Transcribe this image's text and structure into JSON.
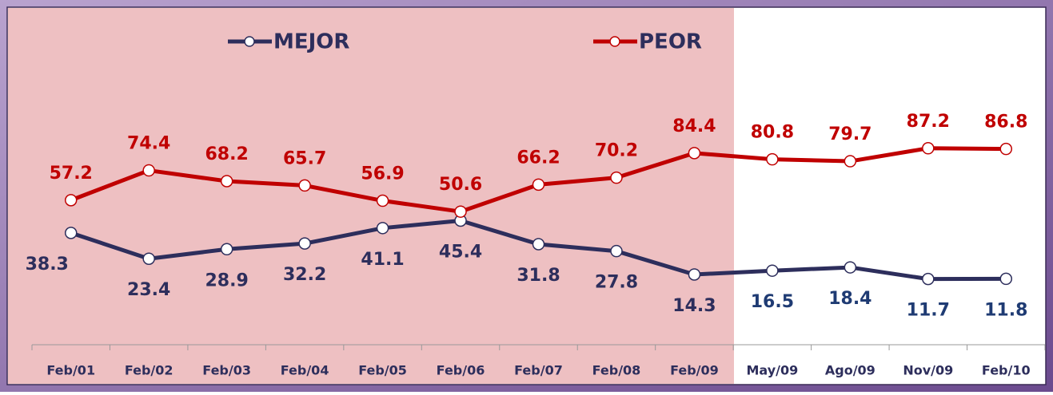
{
  "chart_data": {
    "type": "line",
    "categories": [
      "Feb/01",
      "Feb/02",
      "Feb/03",
      "Feb/04",
      "Feb/05",
      "Feb/06",
      "Feb/07",
      "Feb/08",
      "Feb/09",
      "May/09",
      "Ago/09",
      "Nov/09",
      "Feb/10"
    ],
    "series": [
      {
        "name": "MEJOR",
        "color": "#2d2e5c",
        "values": [
          38.3,
          23.4,
          28.9,
          32.2,
          41.1,
          45.4,
          31.8,
          27.8,
          14.3,
          16.5,
          18.4,
          11.7,
          11.8
        ]
      },
      {
        "name": "PEOR",
        "color": "#c00000",
        "values": [
          57.2,
          74.4,
          68.2,
          65.7,
          56.9,
          50.6,
          66.2,
          70.2,
          84.4,
          80.8,
          79.7,
          87.2,
          86.8
        ]
      }
    ],
    "ylim": [
      0,
      100
    ],
    "legend": "top"
  }
}
